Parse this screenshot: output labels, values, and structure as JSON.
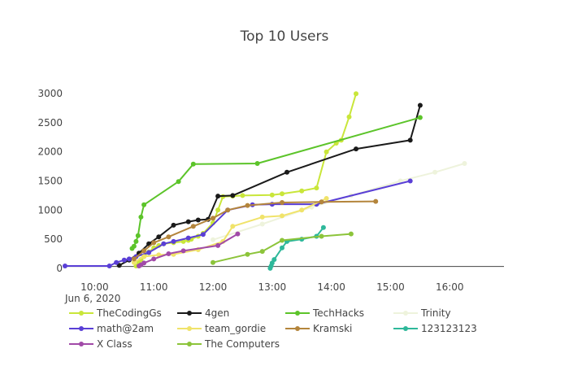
{
  "chart_data": {
    "type": "line",
    "title": "Top 10 Users",
    "xlabel": "",
    "ylabel": "",
    "x_tick_labels": [
      "10:00",
      "11:00",
      "12:00",
      "13:00",
      "14:00",
      "15:00",
      "16:00"
    ],
    "x_subtitle": "Jun 6, 2020",
    "xlim": [
      "09:30",
      "16:55"
    ],
    "y_ticks": [
      0,
      500,
      1000,
      1500,
      2000,
      2500,
      3000
    ],
    "ylim": [
      -30,
      3100
    ],
    "grid": false,
    "legend_position": "bottom",
    "series": [
      {
        "name": "TheCodingGs",
        "color": "#c9e63a",
        "x": [
          "10:42",
          "10:45",
          "10:47",
          "10:50",
          "10:55",
          "11:00",
          "11:05",
          "11:10",
          "11:20",
          "11:30",
          "11:35",
          "11:38",
          "11:45",
          "11:50",
          "12:00",
          "12:05",
          "12:10",
          "12:20",
          "12:30",
          "13:00",
          "13:10",
          "13:30",
          "13:45",
          "13:55",
          "14:05",
          "14:10",
          "14:18",
          "14:25"
        ],
        "y": [
          40,
          100,
          150,
          200,
          280,
          350,
          390,
          420,
          440,
          460,
          480,
          500,
          550,
          600,
          780,
          1000,
          1230,
          1240,
          1250,
          1260,
          1280,
          1330,
          1380,
          2000,
          2150,
          2200,
          2600,
          3000
        ]
      },
      {
        "name": "4gen",
        "color": "#1a1a1a",
        "x": [
          "10:25",
          "10:35",
          "10:45",
          "10:55",
          "11:05",
          "11:20",
          "11:35",
          "11:45",
          "11:55",
          "12:05",
          "12:20",
          "13:15",
          "14:25",
          "15:20",
          "15:30"
        ],
        "y": [
          50,
          140,
          260,
          420,
          540,
          740,
          800,
          830,
          840,
          1240,
          1250,
          1650,
          2050,
          2200,
          2800
        ]
      },
      {
        "name": "TechHacks",
        "color": "#5cc42a",
        "x": [
          "10:38",
          "10:40",
          "10:42",
          "10:44",
          "10:47",
          "10:50",
          "11:25",
          "11:40",
          "12:45",
          "15:30"
        ],
        "y": [
          340,
          380,
          460,
          560,
          880,
          1090,
          1490,
          1790,
          1800,
          2590
        ]
      },
      {
        "name": "Trinity",
        "color": "#eef3dc",
        "x": [
          "12:00",
          "12:50",
          "13:40",
          "14:20",
          "15:10",
          "15:45",
          "16:15"
        ],
        "y": [
          490,
          760,
          1050,
          1250,
          1500,
          1650,
          1800
        ]
      },
      {
        "name": "math@2am",
        "color": "#5a3fd6",
        "x": [
          "09:30",
          "10:15",
          "10:22",
          "10:30",
          "10:35",
          "10:42",
          "10:55",
          "11:10",
          "11:20",
          "11:35",
          "11:50",
          "12:15",
          "12:40",
          "13:00",
          "13:45",
          "15:20"
        ],
        "y": [
          40,
          40,
          100,
          140,
          160,
          200,
          270,
          420,
          460,
          520,
          580,
          1000,
          1090,
          1100,
          1100,
          1500
        ]
      },
      {
        "name": "team_gordie",
        "color": "#f0e36a",
        "x": [
          "10:40",
          "10:50",
          "11:05",
          "11:20",
          "11:45",
          "12:10",
          "12:20",
          "12:50",
          "13:10",
          "13:30",
          "13:55"
        ],
        "y": [
          100,
          200,
          230,
          240,
          320,
          460,
          720,
          880,
          900,
          1000,
          1200
        ]
      },
      {
        "name": "Kramski",
        "color": "#b4853c",
        "x": [
          "10:40",
          "10:50",
          "11:00",
          "11:15",
          "11:40",
          "12:00",
          "12:15",
          "12:35",
          "13:10",
          "13:50",
          "14:45"
        ],
        "y": [
          160,
          300,
          440,
          540,
          720,
          860,
          1000,
          1080,
          1130,
          1140,
          1150
        ]
      },
      {
        "name": "123123123",
        "color": "#2eb89a",
        "x": [
          "12:58",
          "12:59",
          "13:00",
          "13:02",
          "13:10",
          "13:15",
          "13:30",
          "13:45",
          "13:52"
        ],
        "y": [
          0,
          40,
          90,
          150,
          350,
          460,
          500,
          550,
          700
        ]
      },
      {
        "name": "X Class",
        "color": "#a14aa8",
        "x": [
          "10:45",
          "10:47",
          "10:50",
          "11:00",
          "11:15",
          "11:30",
          "12:05",
          "12:25"
        ],
        "y": [
          40,
          60,
          90,
          160,
          250,
          300,
          390,
          590
        ]
      },
      {
        "name": "The Computers",
        "color": "#8cc43a",
        "x": [
          "12:00",
          "12:35",
          "12:50",
          "13:10",
          "13:50",
          "14:20"
        ],
        "y": [
          100,
          240,
          290,
          480,
          550,
          590
        ]
      }
    ]
  }
}
